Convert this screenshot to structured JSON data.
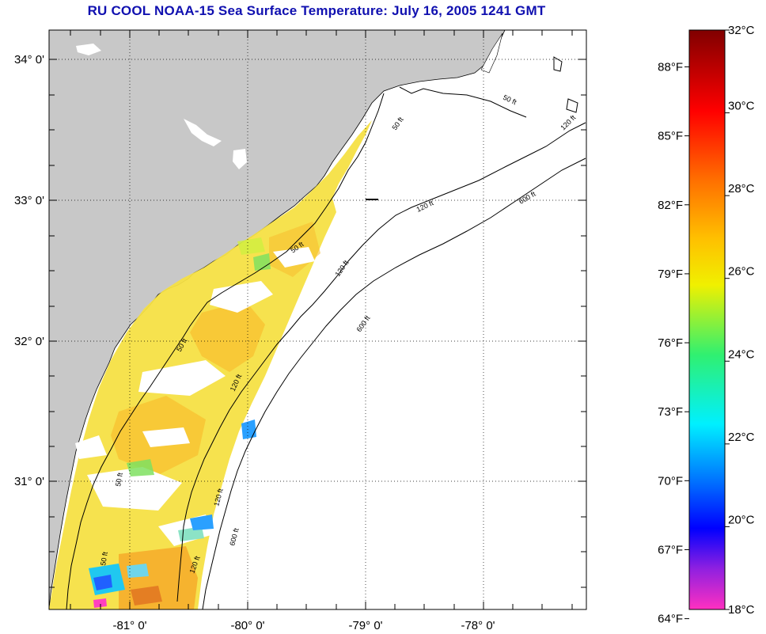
{
  "title": "RU COOL  NOAA-15  Sea Surface Temperature:  July 16, 2005 1241 GMT",
  "map": {
    "lon_ticks": [
      {
        "label": "-81° 0'",
        "value": -81
      },
      {
        "label": "-80° 0'",
        "value": -80
      },
      {
        "label": "-79° 0'",
        "value": -79
      },
      {
        "label": "-78° 0'",
        "value": -78
      }
    ],
    "lat_ticks": [
      {
        "label": "34° 0'",
        "value": 34
      },
      {
        "label": "33° 0'",
        "value": 33
      },
      {
        "label": "32° 0'",
        "value": 32
      },
      {
        "label": "31° 0'",
        "value": 31
      }
    ],
    "contour_labels": {
      "c50": "50 ft",
      "c120": "120 ft",
      "c600": "600 ft"
    },
    "land_color": "#c8c8c8",
    "grid": true
  },
  "colorbar": {
    "celsius": [
      {
        "label": "32°C",
        "value": 32
      },
      {
        "label": "30°C",
        "value": 30
      },
      {
        "label": "28°C",
        "value": 28
      },
      {
        "label": "26°C",
        "value": 26
      },
      {
        "label": "24°C",
        "value": 24
      },
      {
        "label": "22°C",
        "value": 22
      },
      {
        "label": "20°C",
        "value": 20
      },
      {
        "label": "18°C",
        "value": 18
      }
    ],
    "fahrenheit": [
      {
        "label": "88°F",
        "value": 88
      },
      {
        "label": "85°F",
        "value": 85
      },
      {
        "label": "82°F",
        "value": 82
      },
      {
        "label": "79°F",
        "value": 79
      },
      {
        "label": "76°F",
        "value": 76
      },
      {
        "label": "73°F",
        "value": 73
      },
      {
        "label": "70°F",
        "value": 70
      },
      {
        "label": "67°F",
        "value": 67
      },
      {
        "label": "64°F",
        "value": 64
      }
    ],
    "range_c": [
      18,
      32
    ]
  }
}
